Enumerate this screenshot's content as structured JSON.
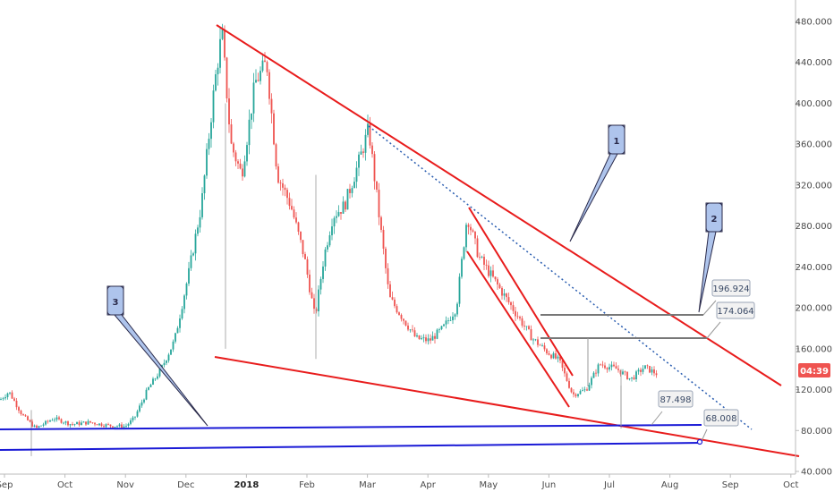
{
  "chart_data": {
    "type": "candlestick",
    "x_ticks": [
      "Sep",
      "Oct",
      "Nov",
      "Dec",
      "2018",
      "Feb",
      "Mar",
      "Apr",
      "May",
      "Jun",
      "Jul",
      "Aug",
      "Sep",
      "Oct"
    ],
    "y_ticks": [
      "480.000",
      "440.000",
      "400.000",
      "360.000",
      "320.000",
      "280.000",
      "240.000",
      "200.000",
      "160.000",
      "120.000",
      "80.000",
      "40.000"
    ],
    "ylim": [
      40,
      480
    ],
    "current_price_badge": "04:39",
    "price_labels": [
      "196.924",
      "174.064",
      "87.498",
      "68.008"
    ],
    "callouts": [
      "1",
      "2",
      "3"
    ],
    "colors": {
      "up": "#26a69a",
      "down": "#ef5350",
      "trendline": "#e81c1c",
      "support": "#1a1ad6",
      "level": "#777777",
      "dotted": "#2a5db0",
      "callout_fill": "#aec4ec",
      "badge": "#ef5350"
    }
  }
}
